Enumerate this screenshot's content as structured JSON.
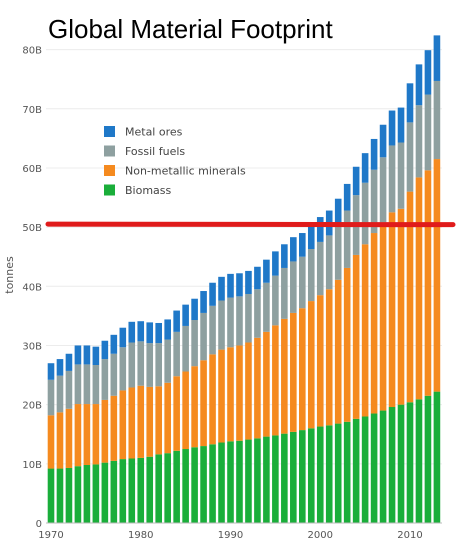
{
  "chart_data": {
    "type": "bar",
    "stacked": true,
    "title": "Global Material Footprint",
    "ylabel": "tonnes",
    "xlabel": "",
    "ylim": [
      0,
      85
    ],
    "yticks": [
      0,
      10,
      20,
      30,
      40,
      50,
      60,
      70,
      80
    ],
    "ytick_labels": [
      "0",
      "10B",
      "20B",
      "30B",
      "40B",
      "50B",
      "60B",
      "70B",
      "80B"
    ],
    "xticks": [
      1970,
      1980,
      1990,
      2000,
      2010
    ],
    "xtick_labels": [
      "1970",
      "1980",
      "1990",
      "2000",
      "2010"
    ],
    "grid": "horizontal",
    "legend_position": "top-left",
    "categories": [
      1970,
      1971,
      1972,
      1973,
      1974,
      1975,
      1976,
      1977,
      1978,
      1979,
      1980,
      1981,
      1982,
      1983,
      1984,
      1985,
      1986,
      1987,
      1988,
      1989,
      1990,
      1991,
      1992,
      1993,
      1994,
      1995,
      1996,
      1997,
      1998,
      1999,
      2000,
      2001,
      2002,
      2003,
      2004,
      2005,
      2006,
      2007,
      2008,
      2009,
      2010,
      2011,
      2012,
      2013
    ],
    "series": [
      {
        "name": "Biomass",
        "color": "#1aae3a",
        "values": [
          9.2,
          9.2,
          9.3,
          9.6,
          9.8,
          9.9,
          10.2,
          10.5,
          10.8,
          10.9,
          11.0,
          11.2,
          11.6,
          11.8,
          12.2,
          12.5,
          12.8,
          13.0,
          13.3,
          13.6,
          13.8,
          13.9,
          14.1,
          14.3,
          14.6,
          14.8,
          15.1,
          15.4,
          15.7,
          16.0,
          16.3,
          16.5,
          16.8,
          17.1,
          17.6,
          18.0,
          18.5,
          19.0,
          19.6,
          20.0,
          20.4,
          20.9,
          21.5,
          22.2
        ]
      },
      {
        "name": "Non-metallic minerals",
        "color": "#f58a1f",
        "values": [
          9.0,
          9.5,
          10.0,
          10.5,
          10.3,
          10.2,
          10.6,
          11.0,
          11.6,
          12.0,
          12.2,
          11.8,
          11.5,
          11.9,
          12.6,
          13.1,
          13.7,
          14.5,
          15.2,
          15.7,
          15.9,
          16.1,
          16.4,
          17.0,
          17.7,
          18.6,
          19.4,
          20.1,
          20.6,
          21.5,
          22.2,
          23.0,
          24.3,
          26.0,
          27.7,
          29.1,
          30.5,
          31.8,
          32.9,
          33.1,
          35.6,
          37.5,
          38.1,
          39.3
        ]
      },
      {
        "name": "Fossil fuels",
        "color": "#8ea0a0",
        "values": [
          6.0,
          6.2,
          6.4,
          6.7,
          6.7,
          6.6,
          6.9,
          7.1,
          7.3,
          7.6,
          7.5,
          7.4,
          7.3,
          7.3,
          7.5,
          7.7,
          7.8,
          8.0,
          8.2,
          8.3,
          8.4,
          8.3,
          8.2,
          8.2,
          8.3,
          8.4,
          8.6,
          8.7,
          8.7,
          8.8,
          9.0,
          9.1,
          9.3,
          9.7,
          10.1,
          10.4,
          10.7,
          11.0,
          11.3,
          11.2,
          11.7,
          12.2,
          12.8,
          13.2
        ]
      },
      {
        "name": "Metal ores",
        "color": "#1f78c8",
        "values": [
          2.8,
          2.8,
          2.9,
          3.2,
          3.2,
          3.1,
          3.1,
          3.2,
          3.3,
          3.5,
          3.4,
          3.5,
          3.4,
          3.4,
          3.6,
          3.6,
          3.6,
          3.7,
          3.9,
          4.0,
          4.0,
          3.9,
          3.9,
          3.8,
          3.9,
          4.1,
          4.0,
          4.1,
          4.0,
          4.1,
          4.2,
          4.2,
          4.4,
          4.5,
          4.8,
          5.0,
          5.2,
          5.5,
          5.9,
          5.9,
          6.6,
          6.9,
          7.5,
          7.7
        ]
      }
    ],
    "reference_line": {
      "value": 50.5,
      "color": "#e01b1b"
    }
  }
}
